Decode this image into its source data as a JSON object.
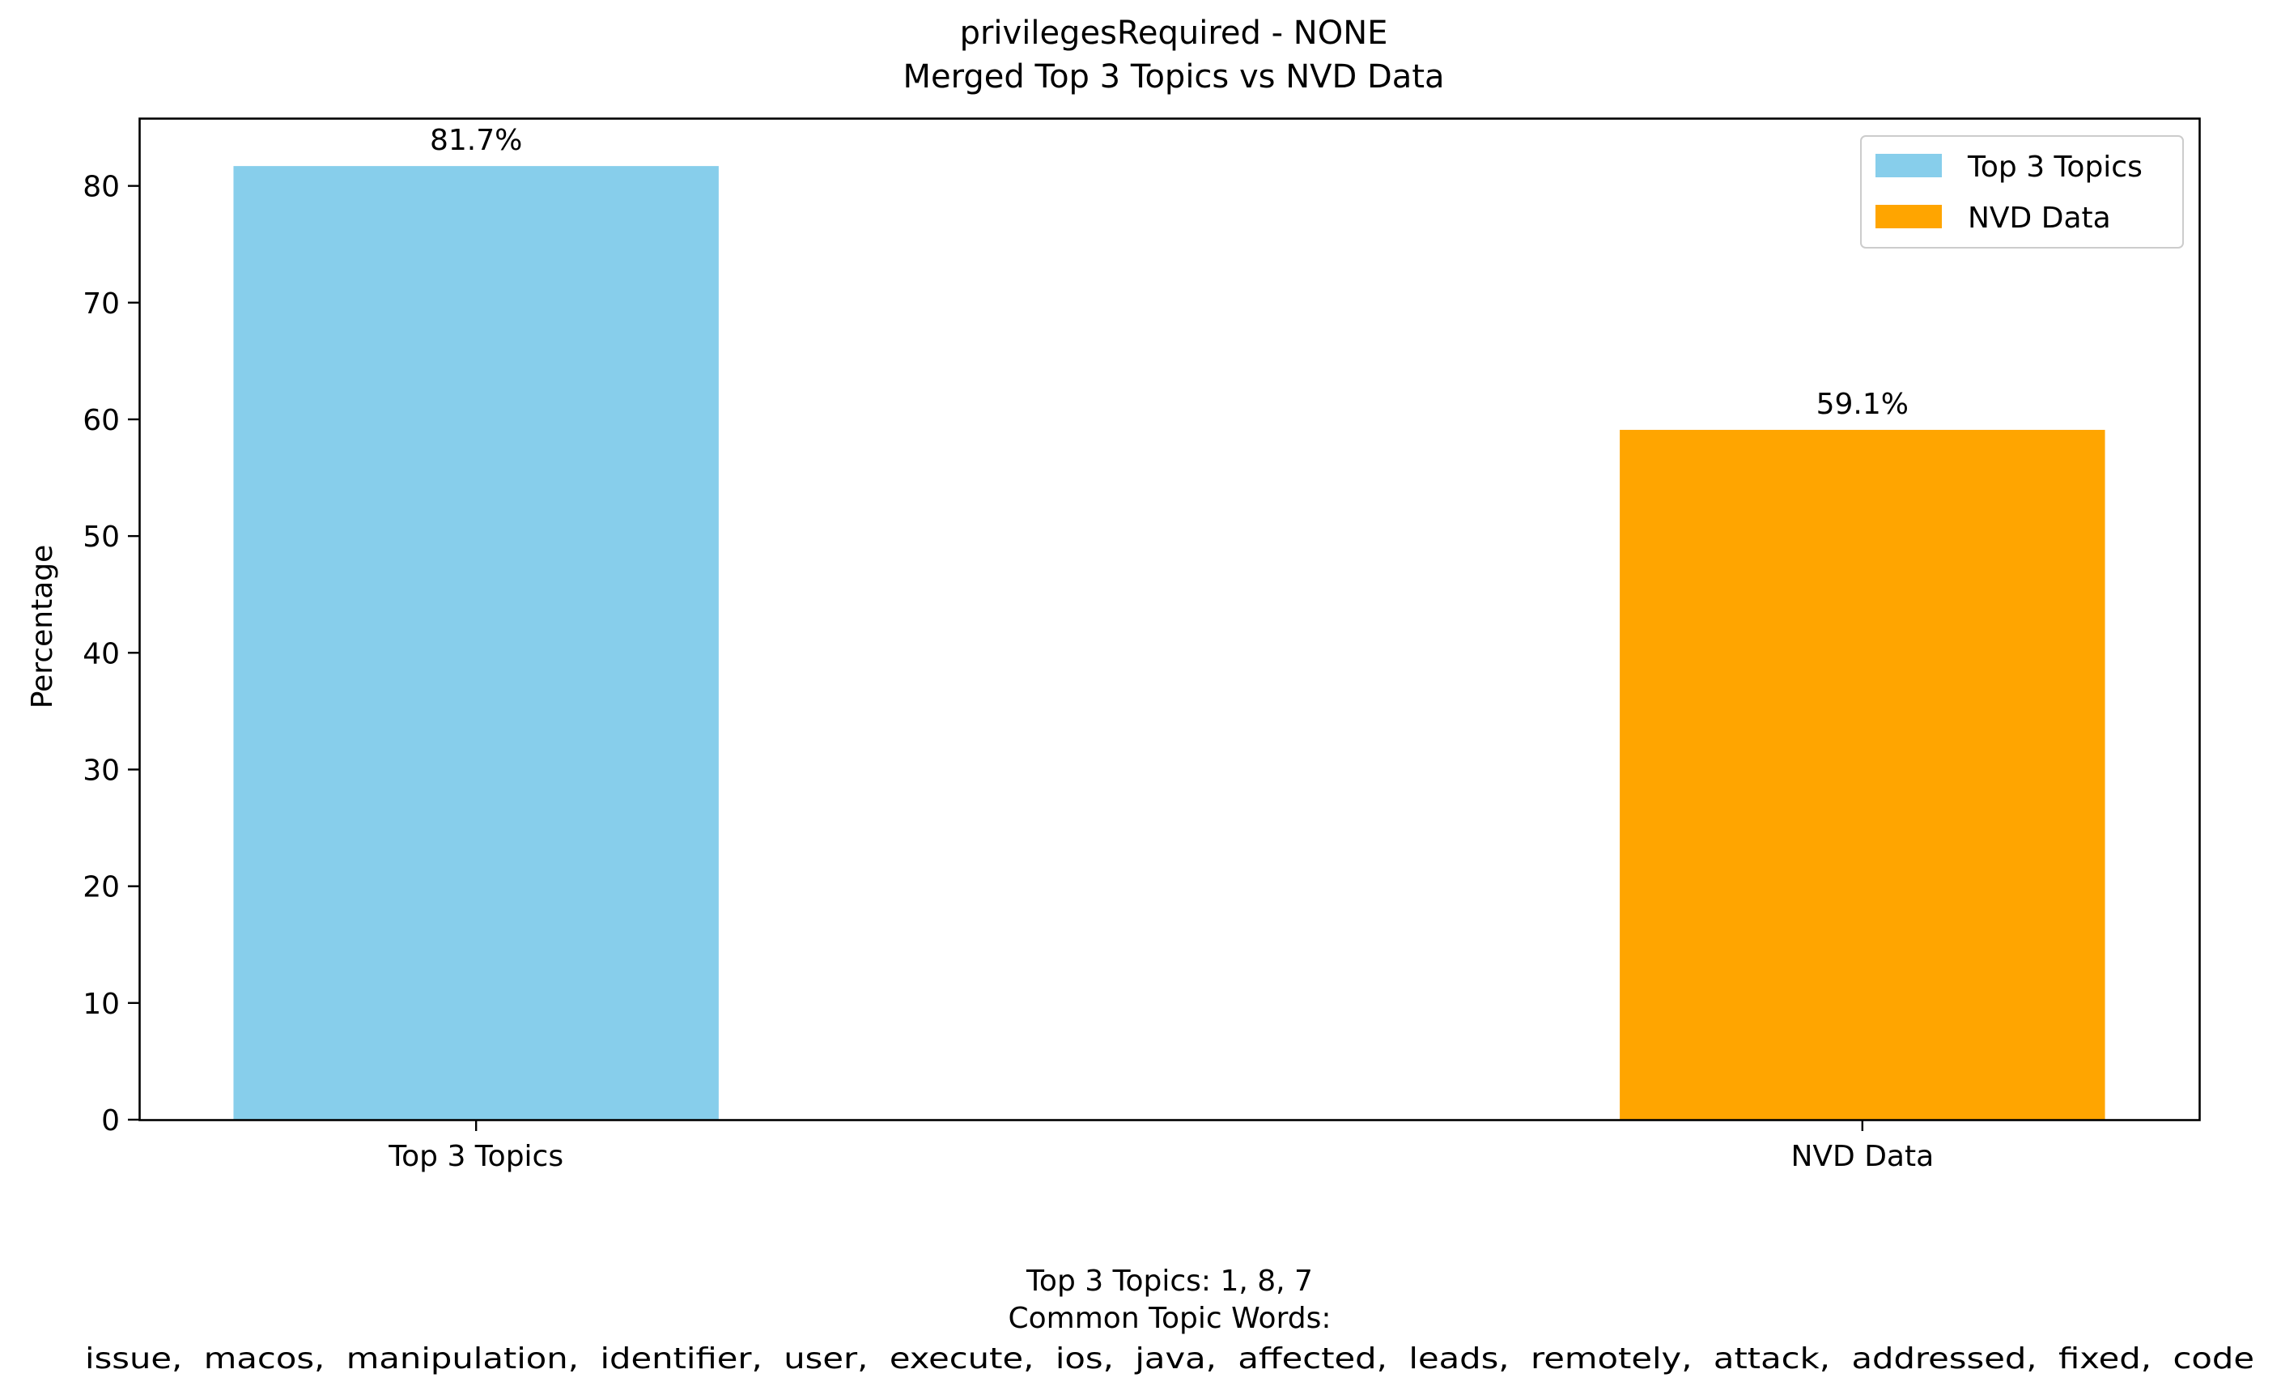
{
  "chart_data": {
    "type": "bar",
    "title": "privilegesRequired - NONE\nMerged Top 3 Topics vs NVD Data",
    "title_lines": [
      "privilegesRequired - NONE",
      "Merged Top 3 Topics vs NVD Data"
    ],
    "xlabel": "",
    "ylabel": "Percentage",
    "categories": [
      "Top 3 Topics",
      "NVD Data"
    ],
    "values": [
      81.7,
      59.1
    ],
    "data_labels": [
      "81.7%",
      "59.1%"
    ],
    "colors": [
      "#87CEEB",
      "#FFA500"
    ],
    "ylim": [
      0,
      85.8
    ],
    "yticks": [
      0,
      10,
      20,
      30,
      40,
      50,
      60,
      70,
      80
    ],
    "grid": false,
    "legend": {
      "placement": "top-right",
      "entries": [
        {
          "label": "Top 3 Topics",
          "color": "#87CEEB"
        },
        {
          "label": "NVD Data",
          "color": "#FFA500"
        }
      ]
    },
    "caption_lines": [
      "Top 3 Topics: 1, 8, 7",
      "Common Topic Words:",
      "issue,  macos,  manipulation,  identifier,  user,  execute,  ios,  java,  affected,  leads,  remotely,  attack,  addressed,  fixed,  code"
    ]
  }
}
